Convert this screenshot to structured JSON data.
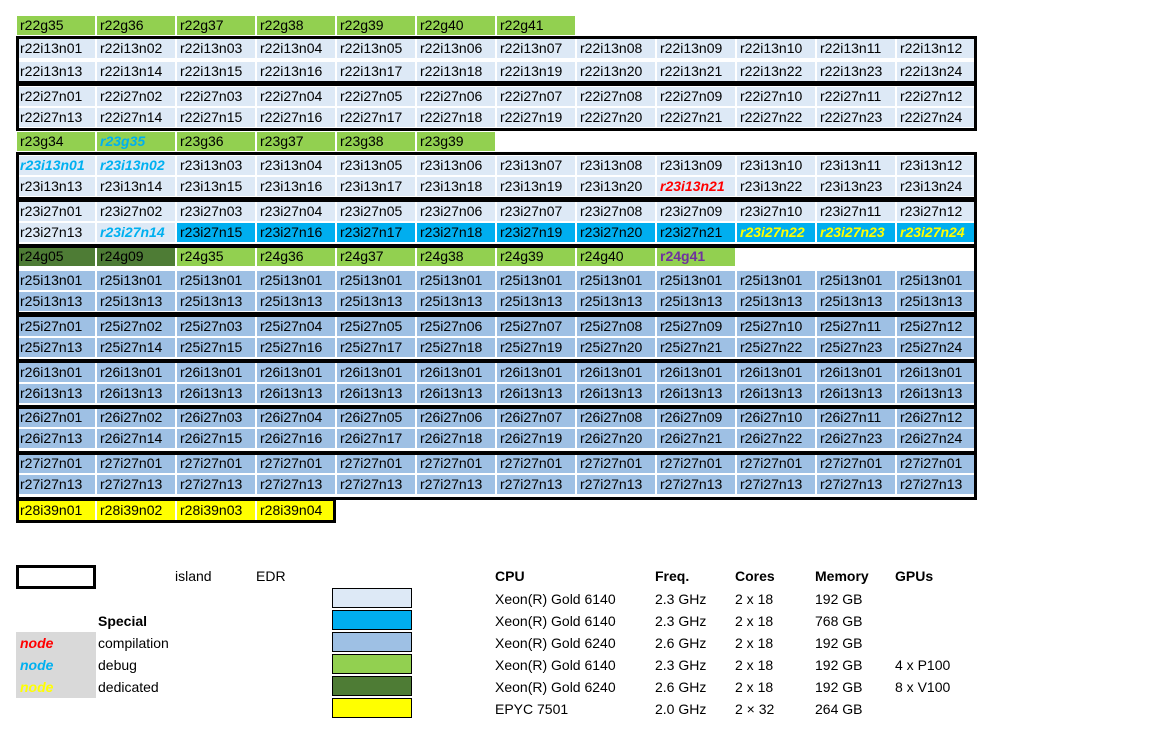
{
  "colors": {
    "very_light_blue": "#dde9f6",
    "blue": "#00aeef",
    "light_blue": "#9ec0e4",
    "green": "#92d050",
    "dark_green": "#4e7c35",
    "yellow": "#ffff00",
    "red_text": "#ff0000",
    "blue_text": "#00b0f0",
    "purple_text": "#7030a0"
  },
  "rows": [
    {
      "cells": [
        [
          "r22g35",
          "gr"
        ],
        [
          "r22g36",
          "gr"
        ],
        [
          "r22g37",
          "gr"
        ],
        [
          "r22g38",
          "gr"
        ],
        [
          "r22g39",
          "gr"
        ],
        [
          "r22g40",
          "gr"
        ],
        [
          "r22g41",
          "gr"
        ]
      ]
    },
    {
      "cells": [
        [
          "r22i13n01",
          "vl"
        ],
        [
          "r22i13n02",
          "vl"
        ],
        [
          "r22i13n03",
          "vl"
        ],
        [
          "r22i13n04",
          "vl"
        ],
        [
          "r22i13n05",
          "vl"
        ],
        [
          "r22i13n06",
          "vl"
        ],
        [
          "r22i13n07",
          "vl"
        ],
        [
          "r22i13n08",
          "vl"
        ],
        [
          "r22i13n09",
          "vl"
        ],
        [
          "r22i13n10",
          "vl"
        ],
        [
          "r22i13n11",
          "vl"
        ],
        [
          "r22i13n12",
          "vl"
        ]
      ]
    },
    {
      "cells": [
        [
          "r22i13n13",
          "vl"
        ],
        [
          "r22i13n14",
          "vl"
        ],
        [
          "r22i13n15",
          "vl"
        ],
        [
          "r22i13n16",
          "vl"
        ],
        [
          "r22i13n17",
          "vl"
        ],
        [
          "r22i13n18",
          "vl"
        ],
        [
          "r22i13n19",
          "vl"
        ],
        [
          "r22i13n20",
          "vl"
        ],
        [
          "r22i13n21",
          "vl"
        ],
        [
          "r22i13n22",
          "vl"
        ],
        [
          "r22i13n23",
          "vl"
        ],
        [
          "r22i13n24",
          "vl"
        ]
      ]
    },
    {
      "cells": [
        [
          "r22i27n01",
          "vl"
        ],
        [
          "r22i27n02",
          "vl"
        ],
        [
          "r22i27n03",
          "vl"
        ],
        [
          "r22i27n04",
          "vl"
        ],
        [
          "r22i27n05",
          "vl"
        ],
        [
          "r22i27n06",
          "vl"
        ],
        [
          "r22i27n07",
          "vl"
        ],
        [
          "r22i27n08",
          "vl"
        ],
        [
          "r22i27n09",
          "vl"
        ],
        [
          "r22i27n10",
          "vl"
        ],
        [
          "r22i27n11",
          "vl"
        ],
        [
          "r22i27n12",
          "vl"
        ]
      ]
    },
    {
      "cells": [
        [
          "r22i27n13",
          "vl"
        ],
        [
          "r22i27n14",
          "vl"
        ],
        [
          "r22i27n15",
          "vl"
        ],
        [
          "r22i27n16",
          "vl"
        ],
        [
          "r22i27n17",
          "vl"
        ],
        [
          "r22i27n18",
          "vl"
        ],
        [
          "r22i27n19",
          "vl"
        ],
        [
          "r22i27n20",
          "vl"
        ],
        [
          "r22i27n21",
          "vl"
        ],
        [
          "r22i27n22",
          "vl"
        ],
        [
          "r22i27n23",
          "vl"
        ],
        [
          "r22i27n24",
          "vl"
        ]
      ]
    },
    {
      "cells": [
        [
          "r23g34",
          "gr"
        ],
        [
          "r23g35",
          "gr",
          "blue"
        ],
        [
          "r23g36",
          "gr"
        ],
        [
          "r23g37",
          "gr"
        ],
        [
          "r23g38",
          "gr"
        ],
        [
          "r23g39",
          "gr"
        ]
      ]
    },
    {
      "cells": [
        [
          "r23i13n01",
          "vl",
          "blue"
        ],
        [
          "r23i13n02",
          "vl",
          "blue"
        ],
        [
          "r23i13n03",
          "vl"
        ],
        [
          "r23i13n04",
          "vl"
        ],
        [
          "r23i13n05",
          "vl"
        ],
        [
          "r23i13n06",
          "vl"
        ],
        [
          "r23i13n07",
          "vl"
        ],
        [
          "r23i13n08",
          "vl"
        ],
        [
          "r23i13n09",
          "vl"
        ],
        [
          "r23i13n10",
          "vl"
        ],
        [
          "r23i13n11",
          "vl"
        ],
        [
          "r23i13n12",
          "vl"
        ]
      ]
    },
    {
      "cells": [
        [
          "r23i13n13",
          "vl"
        ],
        [
          "r23i13n14",
          "vl"
        ],
        [
          "r23i13n15",
          "vl"
        ],
        [
          "r23i13n16",
          "vl"
        ],
        [
          "r23i13n17",
          "vl"
        ],
        [
          "r23i13n18",
          "vl"
        ],
        [
          "r23i13n19",
          "vl"
        ],
        [
          "r23i13n20",
          "vl"
        ],
        [
          "r23i13n21",
          "vl",
          "red"
        ],
        [
          "r23i13n22",
          "vl"
        ],
        [
          "r23i13n23",
          "vl"
        ],
        [
          "r23i13n24",
          "vl"
        ]
      ]
    },
    {
      "cells": [
        [
          "r23i27n01",
          "vl"
        ],
        [
          "r23i27n02",
          "vl"
        ],
        [
          "r23i27n03",
          "vl"
        ],
        [
          "r23i27n04",
          "vl"
        ],
        [
          "r23i27n05",
          "vl"
        ],
        [
          "r23i27n06",
          "vl"
        ],
        [
          "r23i27n07",
          "vl"
        ],
        [
          "r23i27n08",
          "vl"
        ],
        [
          "r23i27n09",
          "vl"
        ],
        [
          "r23i27n10",
          "vl"
        ],
        [
          "r23i27n11",
          "vl"
        ],
        [
          "r23i27n12",
          "vl"
        ]
      ]
    },
    {
      "cells": [
        [
          "r23i27n13",
          "vl"
        ],
        [
          "r23i27n14",
          "vl",
          "blue"
        ],
        [
          "r23i27n15",
          "bl"
        ],
        [
          "r23i27n16",
          "bl"
        ],
        [
          "r23i27n17",
          "bl"
        ],
        [
          "r23i27n18",
          "bl"
        ],
        [
          "r23i27n19",
          "bl"
        ],
        [
          "r23i27n20",
          "bl"
        ],
        [
          "r23i27n21",
          "bl"
        ],
        [
          "r23i27n22",
          "bl",
          "yellow"
        ],
        [
          "r23i27n23",
          "bl",
          "yellow"
        ],
        [
          "r23i27n24",
          "bl",
          "yellow"
        ]
      ]
    },
    {
      "cells": [
        [
          "r24g05",
          "dg"
        ],
        [
          "r24g09",
          "dg"
        ],
        [
          "r24g35",
          "gr"
        ],
        [
          "r24g36",
          "gr"
        ],
        [
          "r24g37",
          "gr"
        ],
        [
          "r24g38",
          "gr"
        ],
        [
          "r24g39",
          "gr"
        ],
        [
          "r24g40",
          "gr"
        ],
        [
          "r24g41",
          "gr",
          "purple"
        ]
      ]
    },
    {
      "cells": [
        [
          "r25i13n01",
          "lb"
        ],
        [
          "r25i13n01",
          "lb"
        ],
        [
          "r25i13n01",
          "lb"
        ],
        [
          "r25i13n01",
          "lb"
        ],
        [
          "r25i13n01",
          "lb"
        ],
        [
          "r25i13n01",
          "lb"
        ],
        [
          "r25i13n01",
          "lb"
        ],
        [
          "r25i13n01",
          "lb"
        ],
        [
          "r25i13n01",
          "lb"
        ],
        [
          "r25i13n01",
          "lb"
        ],
        [
          "r25i13n01",
          "lb"
        ],
        [
          "r25i13n01",
          "lb"
        ]
      ]
    },
    {
      "cells": [
        [
          "r25i13n13",
          "lb"
        ],
        [
          "r25i13n13",
          "lb"
        ],
        [
          "r25i13n13",
          "lb"
        ],
        [
          "r25i13n13",
          "lb"
        ],
        [
          "r25i13n13",
          "lb"
        ],
        [
          "r25i13n13",
          "lb"
        ],
        [
          "r25i13n13",
          "lb"
        ],
        [
          "r25i13n13",
          "lb"
        ],
        [
          "r25i13n13",
          "lb"
        ],
        [
          "r25i13n13",
          "lb"
        ],
        [
          "r25i13n13",
          "lb"
        ],
        [
          "r25i13n13",
          "lb"
        ]
      ]
    },
    {
      "cells": [
        [
          "r25i27n01",
          "lb"
        ],
        [
          "r25i27n02",
          "lb"
        ],
        [
          "r25i27n03",
          "lb"
        ],
        [
          "r25i27n04",
          "lb"
        ],
        [
          "r25i27n05",
          "lb"
        ],
        [
          "r25i27n06",
          "lb"
        ],
        [
          "r25i27n07",
          "lb"
        ],
        [
          "r25i27n08",
          "lb"
        ],
        [
          "r25i27n09",
          "lb"
        ],
        [
          "r25i27n10",
          "lb"
        ],
        [
          "r25i27n11",
          "lb"
        ],
        [
          "r25i27n12",
          "lb"
        ]
      ]
    },
    {
      "cells": [
        [
          "r25i27n13",
          "lb"
        ],
        [
          "r25i27n14",
          "lb"
        ],
        [
          "r25i27n15",
          "lb"
        ],
        [
          "r25i27n16",
          "lb"
        ],
        [
          "r25i27n17",
          "lb"
        ],
        [
          "r25i27n18",
          "lb"
        ],
        [
          "r25i27n19",
          "lb"
        ],
        [
          "r25i27n20",
          "lb"
        ],
        [
          "r25i27n21",
          "lb"
        ],
        [
          "r25i27n22",
          "lb"
        ],
        [
          "r25i27n23",
          "lb"
        ],
        [
          "r25i27n24",
          "lb"
        ]
      ]
    },
    {
      "cells": [
        [
          "r26i13n01",
          "lb"
        ],
        [
          "r26i13n01",
          "lb"
        ],
        [
          "r26i13n01",
          "lb"
        ],
        [
          "r26i13n01",
          "lb"
        ],
        [
          "r26i13n01",
          "lb"
        ],
        [
          "r26i13n01",
          "lb"
        ],
        [
          "r26i13n01",
          "lb"
        ],
        [
          "r26i13n01",
          "lb"
        ],
        [
          "r26i13n01",
          "lb"
        ],
        [
          "r26i13n01",
          "lb"
        ],
        [
          "r26i13n01",
          "lb"
        ],
        [
          "r26i13n01",
          "lb"
        ]
      ]
    },
    {
      "cells": [
        [
          "r26i13n13",
          "lb"
        ],
        [
          "r26i13n13",
          "lb"
        ],
        [
          "r26i13n13",
          "lb"
        ],
        [
          "r26i13n13",
          "lb"
        ],
        [
          "r26i13n13",
          "lb"
        ],
        [
          "r26i13n13",
          "lb"
        ],
        [
          "r26i13n13",
          "lb"
        ],
        [
          "r26i13n13",
          "lb"
        ],
        [
          "r26i13n13",
          "lb"
        ],
        [
          "r26i13n13",
          "lb"
        ],
        [
          "r26i13n13",
          "lb"
        ],
        [
          "r26i13n13",
          "lb"
        ]
      ]
    },
    {
      "cells": [
        [
          "r26i27n01",
          "lb"
        ],
        [
          "r26i27n02",
          "lb"
        ],
        [
          "r26i27n03",
          "lb"
        ],
        [
          "r26i27n04",
          "lb"
        ],
        [
          "r26i27n05",
          "lb"
        ],
        [
          "r26i27n06",
          "lb"
        ],
        [
          "r26i27n07",
          "lb"
        ],
        [
          "r26i27n08",
          "lb"
        ],
        [
          "r26i27n09",
          "lb"
        ],
        [
          "r26i27n10",
          "lb"
        ],
        [
          "r26i27n11",
          "lb"
        ],
        [
          "r26i27n12",
          "lb"
        ]
      ]
    },
    {
      "cells": [
        [
          "r26i27n13",
          "lb"
        ],
        [
          "r26i27n14",
          "lb"
        ],
        [
          "r26i27n15",
          "lb"
        ],
        [
          "r26i27n16",
          "lb"
        ],
        [
          "r26i27n17",
          "lb"
        ],
        [
          "r26i27n18",
          "lb"
        ],
        [
          "r26i27n19",
          "lb"
        ],
        [
          "r26i27n20",
          "lb"
        ],
        [
          "r26i27n21",
          "lb"
        ],
        [
          "r26i27n22",
          "lb"
        ],
        [
          "r26i27n23",
          "lb"
        ],
        [
          "r26i27n24",
          "lb"
        ]
      ]
    },
    {
      "cells": [
        [
          "r27i27n01",
          "lb"
        ],
        [
          "r27i27n01",
          "lb"
        ],
        [
          "r27i27n01",
          "lb"
        ],
        [
          "r27i27n01",
          "lb"
        ],
        [
          "r27i27n01",
          "lb"
        ],
        [
          "r27i27n01",
          "lb"
        ],
        [
          "r27i27n01",
          "lb"
        ],
        [
          "r27i27n01",
          "lb"
        ],
        [
          "r27i27n01",
          "lb"
        ],
        [
          "r27i27n01",
          "lb"
        ],
        [
          "r27i27n01",
          "lb"
        ],
        [
          "r27i27n01",
          "lb"
        ]
      ]
    },
    {
      "cells": [
        [
          "r27i27n13",
          "lb"
        ],
        [
          "r27i27n13",
          "lb"
        ],
        [
          "r27i27n13",
          "lb"
        ],
        [
          "r27i27n13",
          "lb"
        ],
        [
          "r27i27n13",
          "lb"
        ],
        [
          "r27i27n13",
          "lb"
        ],
        [
          "r27i27n13",
          "lb"
        ],
        [
          "r27i27n13",
          "lb"
        ],
        [
          "r27i27n13",
          "lb"
        ],
        [
          "r27i27n13",
          "lb"
        ],
        [
          "r27i27n13",
          "lb"
        ],
        [
          "r27i27n13",
          "lb"
        ]
      ]
    },
    {
      "cells": [
        [
          "r28i39n01",
          "ye"
        ],
        [
          "r28i39n02",
          "ye"
        ],
        [
          "r28i39n03",
          "ye"
        ],
        [
          "r28i39n04",
          "ye"
        ]
      ]
    }
  ],
  "legend": {
    "island": "island",
    "edr": "EDR",
    "special": "Special",
    "node": "node",
    "compilation": "compilation",
    "debug": "debug",
    "dedicated": "dedicated"
  },
  "specs": {
    "headers": {
      "cpu": "CPU",
      "freq": "Freq.",
      "cores": "Cores",
      "memory": "Memory",
      "gpus": "GPUs"
    },
    "rows": [
      {
        "cpu": "Xeon(R) Gold 6140",
        "freq": "2.3 GHz",
        "cores": "2 x 18",
        "memory": "192 GB",
        "gpus": ""
      },
      {
        "cpu": "Xeon(R) Gold 6140",
        "freq": "2.3 GHz",
        "cores": "2 x 18",
        "memory": "768 GB",
        "gpus": ""
      },
      {
        "cpu": "Xeon(R) Gold 6240",
        "freq": "2.6 GHz",
        "cores": "2 x 18",
        "memory": "192 GB",
        "gpus": ""
      },
      {
        "cpu": "Xeon(R) Gold 6140",
        "freq": "2.3 GHz",
        "cores": "2 x 18",
        "memory": "192 GB",
        "gpus": "4 x P100"
      },
      {
        "cpu": "Xeon(R) Gold 6240",
        "freq": "2.6 GHz",
        "cores": "2 x 18",
        "memory": "192 GB",
        "gpus": "8 x V100"
      },
      {
        "cpu": "EPYC 7501",
        "freq": "2.0 GHz",
        "cores": "2 × 32",
        "memory": "264 GB",
        "gpus": ""
      }
    ]
  }
}
